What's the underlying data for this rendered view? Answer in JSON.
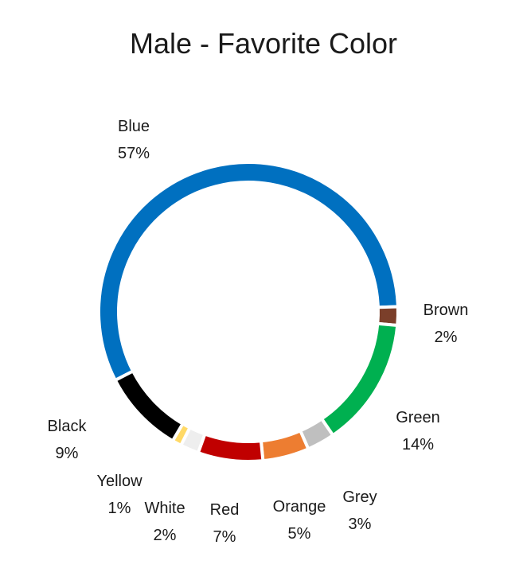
{
  "chart_data": {
    "type": "pie",
    "title": "Male - Favorite Color",
    "series": [
      {
        "name": "Blue",
        "value": 57,
        "label": "57%",
        "color": "#0070C0"
      },
      {
        "name": "Brown",
        "value": 2,
        "label": "2%",
        "color": "#7B3F2A"
      },
      {
        "name": "Green",
        "value": 14,
        "label": "14%",
        "color": "#00B050"
      },
      {
        "name": "Grey",
        "value": 3,
        "label": "3%",
        "color": "#BFBFBF"
      },
      {
        "name": "Orange",
        "value": 5,
        "label": "5%",
        "color": "#ED7D31"
      },
      {
        "name": "Red",
        "value": 7,
        "label": "7%",
        "color": "#C00000"
      },
      {
        "name": "White",
        "value": 2,
        "label": "2%",
        "color": "#EEEEEE"
      },
      {
        "name": "Yellow",
        "value": 1,
        "label": "1%",
        "color": "#FFD966"
      },
      {
        "name": "Black",
        "value": 9,
        "label": "9%",
        "color": "#000000"
      }
    ]
  }
}
